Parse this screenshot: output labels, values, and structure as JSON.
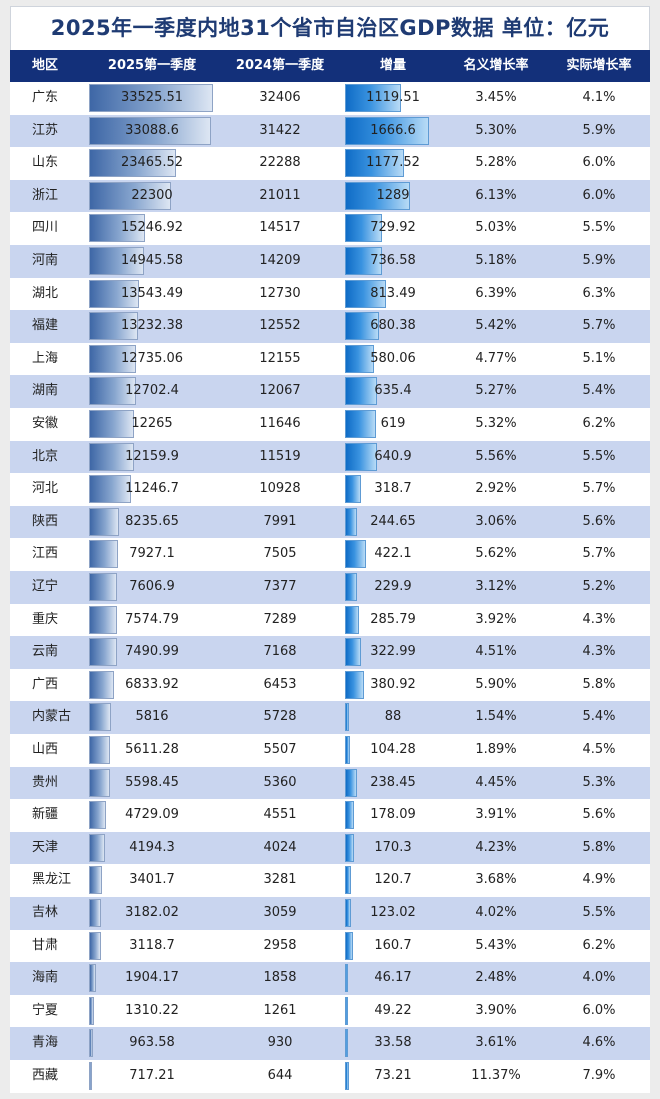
{
  "title": "2025年一季度内地31个省市自治区GDP数据    单位：亿元",
  "colors": {
    "header_bg": "#13307a",
    "row_alt": "#c9d5ef",
    "gdp_bar": "#3e67a6",
    "increase_bar": "#0f6cc6",
    "title_text": "#1f3b73"
  },
  "headers": {
    "region": "地区",
    "q1_2025": "2025第一季度",
    "q1_2024": "2024第一季度",
    "increase": "增量",
    "nominal_growth": "名义增长率",
    "real_growth": "实际增长率"
  },
  "chart_data": {
    "type": "table",
    "title": "2025年一季度内地31个省市自治区GDP数据    单位：亿元",
    "columns": [
      "地区",
      "2025第一季度",
      "2024第一季度",
      "增量",
      "名义增长率",
      "实际增长率"
    ],
    "bar_columns": [
      "2025第一季度",
      "增量"
    ],
    "rows": [
      {
        "region": "广东",
        "q1_2025": "33525.51",
        "q1_2024": "32406",
        "increase": "1119.51",
        "nominal": "3.45%",
        "real": "4.1%"
      },
      {
        "region": "江苏",
        "q1_2025": "33088.6",
        "q1_2024": "31422",
        "increase": "1666.6",
        "nominal": "5.30%",
        "real": "5.9%"
      },
      {
        "region": "山东",
        "q1_2025": "23465.52",
        "q1_2024": "22288",
        "increase": "1177.52",
        "nominal": "5.28%",
        "real": "6.0%"
      },
      {
        "region": "浙江",
        "q1_2025": "22300",
        "q1_2024": "21011",
        "increase": "1289",
        "nominal": "6.13%",
        "real": "6.0%"
      },
      {
        "region": "四川",
        "q1_2025": "15246.92",
        "q1_2024": "14517",
        "increase": "729.92",
        "nominal": "5.03%",
        "real": "5.5%"
      },
      {
        "region": "河南",
        "q1_2025": "14945.58",
        "q1_2024": "14209",
        "increase": "736.58",
        "nominal": "5.18%",
        "real": "5.9%"
      },
      {
        "region": "湖北",
        "q1_2025": "13543.49",
        "q1_2024": "12730",
        "increase": "813.49",
        "nominal": "6.39%",
        "real": "6.3%"
      },
      {
        "region": "福建",
        "q1_2025": "13232.38",
        "q1_2024": "12552",
        "increase": "680.38",
        "nominal": "5.42%",
        "real": "5.7%"
      },
      {
        "region": "上海",
        "q1_2025": "12735.06",
        "q1_2024": "12155",
        "increase": "580.06",
        "nominal": "4.77%",
        "real": "5.1%"
      },
      {
        "region": "湖南",
        "q1_2025": "12702.4",
        "q1_2024": "12067",
        "increase": "635.4",
        "nominal": "5.27%",
        "real": "5.4%"
      },
      {
        "region": "安徽",
        "q1_2025": "12265",
        "q1_2024": "11646",
        "increase": "619",
        "nominal": "5.32%",
        "real": "6.2%"
      },
      {
        "region": "北京",
        "q1_2025": "12159.9",
        "q1_2024": "11519",
        "increase": "640.9",
        "nominal": "5.56%",
        "real": "5.5%"
      },
      {
        "region": "河北",
        "q1_2025": "11246.7",
        "q1_2024": "10928",
        "increase": "318.7",
        "nominal": "2.92%",
        "real": "5.7%"
      },
      {
        "region": "陕西",
        "q1_2025": "8235.65",
        "q1_2024": "7991",
        "increase": "244.65",
        "nominal": "3.06%",
        "real": "5.6%"
      },
      {
        "region": "江西",
        "q1_2025": "7927.1",
        "q1_2024": "7505",
        "increase": "422.1",
        "nominal": "5.62%",
        "real": "5.7%"
      },
      {
        "region": "辽宁",
        "q1_2025": "7606.9",
        "q1_2024": "7377",
        "increase": "229.9",
        "nominal": "3.12%",
        "real": "5.2%"
      },
      {
        "region": "重庆",
        "q1_2025": "7574.79",
        "q1_2024": "7289",
        "increase": "285.79",
        "nominal": "3.92%",
        "real": "4.3%"
      },
      {
        "region": "云南",
        "q1_2025": "7490.99",
        "q1_2024": "7168",
        "increase": "322.99",
        "nominal": "4.51%",
        "real": "4.3%"
      },
      {
        "region": "广西",
        "q1_2025": "6833.92",
        "q1_2024": "6453",
        "increase": "380.92",
        "nominal": "5.90%",
        "real": "5.8%"
      },
      {
        "region": "内蒙古",
        "q1_2025": "5816",
        "q1_2024": "5728",
        "increase": "88",
        "nominal": "1.54%",
        "real": "5.4%"
      },
      {
        "region": "山西",
        "q1_2025": "5611.28",
        "q1_2024": "5507",
        "increase": "104.28",
        "nominal": "1.89%",
        "real": "4.5%"
      },
      {
        "region": "贵州",
        "q1_2025": "5598.45",
        "q1_2024": "5360",
        "increase": "238.45",
        "nominal": "4.45%",
        "real": "5.3%"
      },
      {
        "region": "新疆",
        "q1_2025": "4729.09",
        "q1_2024": "4551",
        "increase": "178.09",
        "nominal": "3.91%",
        "real": "5.6%"
      },
      {
        "region": "天津",
        "q1_2025": "4194.3",
        "q1_2024": "4024",
        "increase": "170.3",
        "nominal": "4.23%",
        "real": "5.8%"
      },
      {
        "region": "黑龙江",
        "q1_2025": "3401.7",
        "q1_2024": "3281",
        "increase": "120.7",
        "nominal": "3.68%",
        "real": "4.9%"
      },
      {
        "region": "吉林",
        "q1_2025": "3182.02",
        "q1_2024": "3059",
        "increase": "123.02",
        "nominal": "4.02%",
        "real": "5.5%"
      },
      {
        "region": "甘肃",
        "q1_2025": "3118.7",
        "q1_2024": "2958",
        "increase": "160.7",
        "nominal": "5.43%",
        "real": "6.2%"
      },
      {
        "region": "海南",
        "q1_2025": "1904.17",
        "q1_2024": "1858",
        "increase": "46.17",
        "nominal": "2.48%",
        "real": "4.0%"
      },
      {
        "region": "宁夏",
        "q1_2025": "1310.22",
        "q1_2024": "1261",
        "increase": "49.22",
        "nominal": "3.90%",
        "real": "6.0%"
      },
      {
        "region": "青海",
        "q1_2025": "963.58",
        "q1_2024": "930",
        "increase": "33.58",
        "nominal": "3.61%",
        "real": "4.6%"
      },
      {
        "region": "西藏",
        "q1_2025": "717.21",
        "q1_2024": "644",
        "increase": "73.21",
        "nominal": "11.37%",
        "real": "7.9%"
      }
    ]
  }
}
